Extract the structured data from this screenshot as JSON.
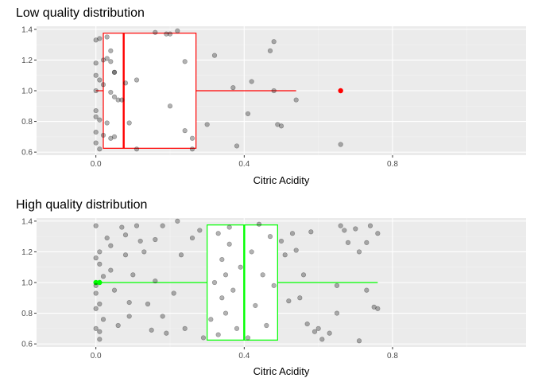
{
  "chart_data": [
    {
      "type": "boxplot",
      "title": "Low quality distribution",
      "xlabel": "Citric Acidity",
      "ylabel": "",
      "xlim": [
        -0.16,
        1.16
      ],
      "ylim": [
        0.58,
        1.42
      ],
      "x_ticks": [
        0.0,
        0.4,
        0.8
      ],
      "x_tick_labels": [
        "0.0",
        "0.4",
        "0.8"
      ],
      "y_ticks": [
        0.6,
        0.8,
        1.0,
        1.2,
        1.4
      ],
      "y_tick_labels": [
        "0.6",
        "0.8",
        "1.0",
        "1.2",
        "1.4"
      ],
      "grid": true,
      "box_color": "#ff0000",
      "box": {
        "min": 0.0,
        "q1": 0.02,
        "median": 0.075,
        "q3": 0.27,
        "max": 0.54,
        "y_center": 1.0,
        "y_low": 0.625,
        "y_high": 1.375
      },
      "outliers": [
        {
          "x": 0.66,
          "y": 1.0
        }
      ],
      "points": [
        {
          "x": 0.0,
          "y": 1.33
        },
        {
          "x": 0.01,
          "y": 1.34
        },
        {
          "x": 0.03,
          "y": 1.35
        },
        {
          "x": 0.0,
          "y": 1.18
        },
        {
          "x": 0.02,
          "y": 1.2
        },
        {
          "x": 0.03,
          "y": 1.21
        },
        {
          "x": 0.04,
          "y": 1.26
        },
        {
          "x": 0.05,
          "y": 1.12
        },
        {
          "x": 0.05,
          "y": 1.12
        },
        {
          "x": 0.0,
          "y": 1.1
        },
        {
          "x": 0.01,
          "y": 1.07
        },
        {
          "x": 0.02,
          "y": 1.04
        },
        {
          "x": 0.0,
          "y": 1.0
        },
        {
          "x": 0.04,
          "y": 0.99
        },
        {
          "x": 0.05,
          "y": 0.96
        },
        {
          "x": 0.06,
          "y": 0.94
        },
        {
          "x": 0.07,
          "y": 0.94
        },
        {
          "x": 0.0,
          "y": 0.87
        },
        {
          "x": 0.0,
          "y": 0.83
        },
        {
          "x": 0.01,
          "y": 0.81
        },
        {
          "x": 0.03,
          "y": 0.79
        },
        {
          "x": 0.0,
          "y": 0.73
        },
        {
          "x": 0.02,
          "y": 0.71
        },
        {
          "x": 0.04,
          "y": 0.69
        },
        {
          "x": 0.05,
          "y": 0.7
        },
        {
          "x": 0.0,
          "y": 0.66
        },
        {
          "x": 0.01,
          "y": 0.62
        },
        {
          "x": 0.04,
          "y": 1.19
        },
        {
          "x": 0.08,
          "y": 1.05
        },
        {
          "x": 0.11,
          "y": 1.07
        },
        {
          "x": 0.09,
          "y": 0.79
        },
        {
          "x": 0.11,
          "y": 0.62
        },
        {
          "x": 0.16,
          "y": 1.38
        },
        {
          "x": 0.19,
          "y": 1.37
        },
        {
          "x": 0.2,
          "y": 1.37
        },
        {
          "x": 0.22,
          "y": 1.39
        },
        {
          "x": 0.2,
          "y": 0.9
        },
        {
          "x": 0.24,
          "y": 1.19
        },
        {
          "x": 0.24,
          "y": 0.74
        },
        {
          "x": 0.26,
          "y": 0.62
        },
        {
          "x": 0.26,
          "y": 0.69
        },
        {
          "x": 0.3,
          "y": 0.78
        },
        {
          "x": 0.32,
          "y": 1.23
        },
        {
          "x": 0.37,
          "y": 1.02
        },
        {
          "x": 0.38,
          "y": 0.64
        },
        {
          "x": 0.41,
          "y": 0.85
        },
        {
          "x": 0.42,
          "y": 1.06
        },
        {
          "x": 0.48,
          "y": 1.32
        },
        {
          "x": 0.47,
          "y": 1.26
        },
        {
          "x": 0.48,
          "y": 1.0
        },
        {
          "x": 0.49,
          "y": 0.78
        },
        {
          "x": 0.5,
          "y": 0.77
        },
        {
          "x": 0.54,
          "y": 0.94
        },
        {
          "x": 0.66,
          "y": 0.65
        }
      ]
    },
    {
      "type": "boxplot",
      "title": "High quality distribution",
      "xlabel": "Citric Acidity",
      "ylabel": "",
      "xlim": [
        -0.16,
        1.16
      ],
      "ylim": [
        0.58,
        1.42
      ],
      "x_ticks": [
        0.0,
        0.4,
        0.8
      ],
      "x_tick_labels": [
        "0.0",
        "0.4",
        "0.8"
      ],
      "y_ticks": [
        0.6,
        0.8,
        1.0,
        1.2,
        1.4
      ],
      "y_tick_labels": [
        "0.6",
        "0.8",
        "1.0",
        "1.2",
        "1.4"
      ],
      "grid": true,
      "box_color": "#00ff00",
      "box": {
        "min": 0.0,
        "q1": 0.3,
        "median": 0.4,
        "q3": 0.49,
        "max": 0.76,
        "y_center": 1.0,
        "y_low": 0.625,
        "y_high": 1.375
      },
      "outliers": [
        {
          "x": 0.0,
          "y": 1.0
        },
        {
          "x": 0.01,
          "y": 1.0
        }
      ],
      "points": [
        {
          "x": 0.0,
          "y": 1.37
        },
        {
          "x": 0.01,
          "y": 1.2
        },
        {
          "x": 0.0,
          "y": 1.16
        },
        {
          "x": 0.01,
          "y": 1.12
        },
        {
          "x": 0.02,
          "y": 1.04
        },
        {
          "x": 0.0,
          "y": 0.98
        },
        {
          "x": 0.0,
          "y": 0.93
        },
        {
          "x": 0.01,
          "y": 0.86
        },
        {
          "x": 0.0,
          "y": 0.83
        },
        {
          "x": 0.02,
          "y": 0.76
        },
        {
          "x": 0.0,
          "y": 0.7
        },
        {
          "x": 0.01,
          "y": 0.68
        },
        {
          "x": 0.01,
          "y": 0.63
        },
        {
          "x": 0.03,
          "y": 1.29
        },
        {
          "x": 0.04,
          "y": 1.24
        },
        {
          "x": 0.04,
          "y": 1.08
        },
        {
          "x": 0.05,
          "y": 0.95
        },
        {
          "x": 0.06,
          "y": 0.72
        },
        {
          "x": 0.07,
          "y": 1.36
        },
        {
          "x": 0.08,
          "y": 1.31
        },
        {
          "x": 0.08,
          "y": 1.18
        },
        {
          "x": 0.09,
          "y": 0.87
        },
        {
          "x": 0.09,
          "y": 0.78
        },
        {
          "x": 0.1,
          "y": 1.05
        },
        {
          "x": 0.11,
          "y": 1.37
        },
        {
          "x": 0.12,
          "y": 1.27
        },
        {
          "x": 0.13,
          "y": 1.2
        },
        {
          "x": 0.14,
          "y": 0.86
        },
        {
          "x": 0.15,
          "y": 0.69
        },
        {
          "x": 0.16,
          "y": 1.28
        },
        {
          "x": 0.16,
          "y": 1.01
        },
        {
          "x": 0.18,
          "y": 1.37
        },
        {
          "x": 0.18,
          "y": 0.78
        },
        {
          "x": 0.19,
          "y": 0.67
        },
        {
          "x": 0.21,
          "y": 0.93
        },
        {
          "x": 0.22,
          "y": 1.4
        },
        {
          "x": 0.23,
          "y": 1.18
        },
        {
          "x": 0.24,
          "y": 0.7
        },
        {
          "x": 0.26,
          "y": 1.29
        },
        {
          "x": 0.28,
          "y": 1.34
        },
        {
          "x": 0.29,
          "y": 0.64
        },
        {
          "x": 0.33,
          "y": 1.32
        },
        {
          "x": 0.34,
          "y": 1.15
        },
        {
          "x": 0.34,
          "y": 0.9
        },
        {
          "x": 0.35,
          "y": 1.05
        },
        {
          "x": 0.35,
          "y": 0.8
        },
        {
          "x": 0.36,
          "y": 1.25
        },
        {
          "x": 0.37,
          "y": 0.95
        },
        {
          "x": 0.38,
          "y": 0.7
        },
        {
          "x": 0.39,
          "y": 1.1
        },
        {
          "x": 0.32,
          "y": 1.0
        },
        {
          "x": 0.31,
          "y": 0.76
        },
        {
          "x": 0.33,
          "y": 0.66
        },
        {
          "x": 0.36,
          "y": 1.36
        },
        {
          "x": 0.42,
          "y": 1.2
        },
        {
          "x": 0.43,
          "y": 0.85
        },
        {
          "x": 0.44,
          "y": 1.38
        },
        {
          "x": 0.45,
          "y": 1.05
        },
        {
          "x": 0.46,
          "y": 0.72
        },
        {
          "x": 0.47,
          "y": 1.3
        },
        {
          "x": 0.48,
          "y": 0.98
        },
        {
          "x": 0.41,
          "y": 0.64
        },
        {
          "x": 0.5,
          "y": 1.27
        },
        {
          "x": 0.51,
          "y": 1.18
        },
        {
          "x": 0.52,
          "y": 0.88
        },
        {
          "x": 0.53,
          "y": 1.32
        },
        {
          "x": 0.54,
          "y": 1.21
        },
        {
          "x": 0.55,
          "y": 0.9
        },
        {
          "x": 0.56,
          "y": 1.05
        },
        {
          "x": 0.57,
          "y": 0.73
        },
        {
          "x": 0.58,
          "y": 1.33
        },
        {
          "x": 0.59,
          "y": 0.68
        },
        {
          "x": 0.6,
          "y": 0.7
        },
        {
          "x": 0.61,
          "y": 0.63
        },
        {
          "x": 0.63,
          "y": 0.67
        },
        {
          "x": 0.65,
          "y": 0.98
        },
        {
          "x": 0.65,
          "y": 0.8
        },
        {
          "x": 0.66,
          "y": 1.37
        },
        {
          "x": 0.67,
          "y": 1.34
        },
        {
          "x": 0.68,
          "y": 1.26
        },
        {
          "x": 0.7,
          "y": 1.35
        },
        {
          "x": 0.71,
          "y": 1.2
        },
        {
          "x": 0.71,
          "y": 0.62
        },
        {
          "x": 0.73,
          "y": 1.26
        },
        {
          "x": 0.73,
          "y": 0.95
        },
        {
          "x": 0.74,
          "y": 1.37
        },
        {
          "x": 0.75,
          "y": 0.84
        },
        {
          "x": 0.76,
          "y": 1.32
        },
        {
          "x": 0.76,
          "y": 0.83
        }
      ]
    }
  ]
}
